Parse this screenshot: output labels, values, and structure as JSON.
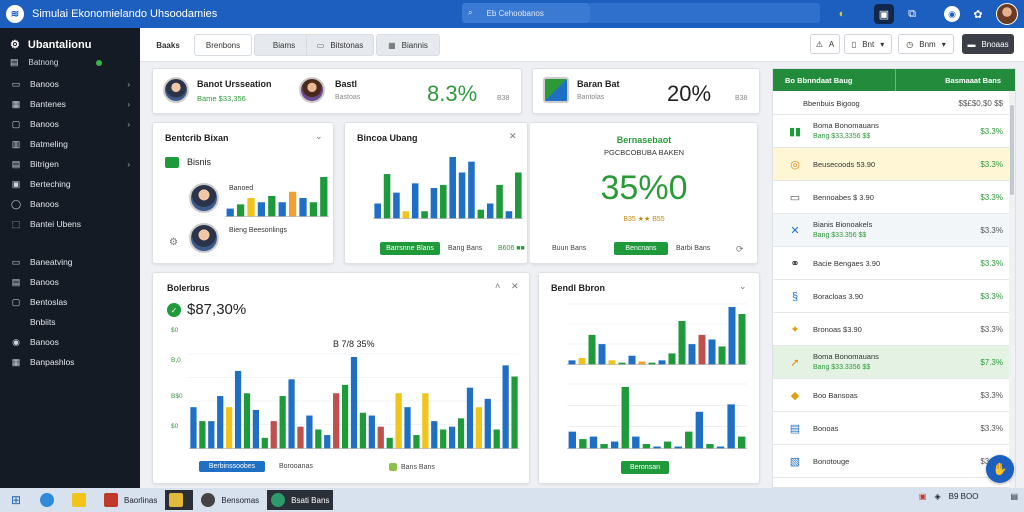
{
  "topbar": {
    "title": "Simulai Ekonomielando Uhsoodamies",
    "search_placeholder": "Eb Cehoobanos"
  },
  "sidebar": {
    "header": "Ubantalionu",
    "status": "Batnong",
    "items": [
      {
        "label": "Banoos",
        "chevron": true,
        "icon": "card-icon"
      },
      {
        "label": "Bantenes",
        "chevron": true,
        "icon": "grid-icon"
      },
      {
        "label": "Banoos",
        "chevron": true,
        "icon": "document-icon"
      },
      {
        "label": "Batmeling",
        "chevron": false,
        "icon": "chart-icon"
      },
      {
        "label": "Bitrigen",
        "chevron": true,
        "icon": "list-icon"
      },
      {
        "label": "Berteching",
        "chevron": false,
        "icon": "folder-icon"
      },
      {
        "label": "Banoos",
        "chevron": false,
        "icon": "settings-icon"
      },
      {
        "label": "Bantei Ubens",
        "chevron": false,
        "icon": "user-icon"
      }
    ],
    "items2": [
      {
        "label": "Baneatving",
        "icon": "calendar-icon"
      },
      {
        "label": "Banoos",
        "icon": "mail-icon"
      },
      {
        "label": "Bentoslas",
        "icon": "box-icon"
      },
      {
        "label": "Bnbiits",
        "icon": ""
      },
      {
        "label": "Banoos",
        "icon": "gear-icon"
      },
      {
        "label": "Banpashlos",
        "icon": "help-icon"
      }
    ]
  },
  "tabs": {
    "t1": "Baaks",
    "t2": "Brenbons",
    "t3": "Biams",
    "t4": "Bitstonas",
    "t5": "Biannis"
  },
  "controls": {
    "c1": "A",
    "c2": "Bnt",
    "c3": "Bnm",
    "c4": "Bnoaas"
  },
  "kpi": {
    "p1_name": "Banot Ursseation",
    "p1_sub": "Bame $33,356",
    "p2_name": "Bastl",
    "p2_sub": "Bastoas",
    "pct1": "8.3%",
    "pct1_side": "B38",
    "p3_name": "Baran Bat",
    "p3_sub": "Bantolas",
    "pct2": "20%",
    "pct2_side": "B38"
  },
  "card_a": {
    "title": "Bentcrib Bixan",
    "sub": "Bisnis",
    "person1": "Banoed",
    "person2": "Bieng Beesonlings"
  },
  "card_b": {
    "title": "Bincoa Ubang"
  },
  "card_c": {
    "title": "Bernasebaot",
    "subtitle": "PGCBCOBUBA BAKEN",
    "big": "35%0",
    "stars": "B35 ★★ B55",
    "legend": [
      "Barrsnne Blans",
      "Bang Bans",
      "B606 ■■",
      "Buun Bans"
    ],
    "btn": "Bencnans",
    "last": "Barbi Bans"
  },
  "card_d": {
    "title": "Bolerbrus",
    "big": "$87,30%",
    "inner": "B 7/8 35%",
    "legend": [
      "Berbinssoobes",
      "Borooanas",
      "Bans Bans"
    ]
  },
  "card_e": {
    "title": "Bendl Bbron",
    "legend_btn": "Beronsan"
  },
  "right": {
    "head_left": "Bo Bbnndaat Baug",
    "head_right": "Basmaaat Bans",
    "summary_label": "Bbenbuis Bigoog",
    "summary_val": "$$£$0,$0 $$",
    "rows": [
      {
        "name": "Boma Bonomauans",
        "sub": "Bang $33,3356 $$",
        "val": "$3.3%",
        "green": true,
        "icon": "bars-icon"
      },
      {
        "name": "Beusecoods 53.90",
        "sub": "",
        "val": "$3.3%",
        "green": true,
        "icon": "coin-icon",
        "highlight": "yellow"
      },
      {
        "name": "Bennoabes $ 3.90",
        "sub": "",
        "val": "$3.3%",
        "green": true,
        "icon": "box-icon"
      },
      {
        "name": "Bianis Bionoakels",
        "sub": "Bang $33.356 $$",
        "val": "$3.3%",
        "green": false,
        "icon": "x-icon"
      },
      {
        "name": "Bacie Bengaes 3.90",
        "sub": "",
        "val": "$3.3%",
        "green": true,
        "icon": "link-icon"
      },
      {
        "name": "Boracloas 3.90",
        "sub": "",
        "val": "$3.3%",
        "green": true,
        "icon": "s-icon"
      },
      {
        "name": "Bronoas $3.90",
        "sub": "",
        "val": "$3.3%",
        "green": false,
        "icon": "star-icon"
      },
      {
        "name": "Boma Bonomauans",
        "sub": "Bang $33.3356 $$",
        "val": "$7.3%",
        "green": true,
        "icon": "arrow-icon",
        "highlight": "green"
      },
      {
        "name": "Boo Bansoas",
        "sub": "",
        "val": "$3.3%",
        "green": false,
        "icon": "diamond-icon"
      },
      {
        "name": "Bonoas",
        "sub": "",
        "val": "$3.3%",
        "green": false,
        "icon": "doc-icon"
      },
      {
        "name": "Bonotouge",
        "sub": "",
        "val": "$3.3%",
        "green": false,
        "icon": "z-icon"
      }
    ]
  },
  "taskbar": {
    "apps": [
      "Baorlinas",
      "",
      "Bensomas",
      "Bsati Bans"
    ],
    "tray": "B9 BOO"
  },
  "chart_data": [
    {
      "type": "bar",
      "name": "card_a",
      "values": [
        8,
        12,
        18,
        14,
        20,
        14,
        24,
        18,
        14,
        38
      ],
      "colors": [
        "#1f6fc4",
        "#1f9a3b",
        "#f0c419",
        "#1f6fc4",
        "#1f9a3b",
        "#1f6fc4",
        "#f0a030",
        "#1f6fc4",
        "#1f9a3b",
        "#1f9a3b"
      ]
    },
    {
      "type": "bar",
      "name": "card_b",
      "values": [
        20,
        58,
        34,
        10,
        46,
        10,
        40,
        44,
        80,
        60,
        74,
        12,
        20,
        44,
        10,
        60
      ],
      "colors": [
        "#1f6fc4",
        "#1f9a3b",
        "#1f6fc4",
        "#f0c419",
        "#1f6fc4",
        "#1f9a3b",
        "#1f6fc4",
        "#1f9a3b",
        "#1f6fc4",
        "#1f6fc4",
        "#1f6fc4",
        "#1f9a3b",
        "#1f6fc4",
        "#1f9a3b",
        "#1f6fc4",
        "#1f9a3b"
      ]
    },
    {
      "type": "bar",
      "name": "card_d",
      "values": [
        30,
        20,
        20,
        38,
        30,
        56,
        40,
        28,
        8,
        20,
        38,
        50,
        16,
        24,
        14,
        10,
        40,
        46,
        66,
        26,
        24,
        16,
        8,
        40,
        30,
        10,
        40,
        20,
        14,
        16,
        22,
        44,
        30,
        36,
        14,
        60,
        52
      ],
      "colors": [
        "#1f6fc4",
        "#1f9a3b",
        "#1f6fc4",
        "#1f6fc4",
        "#f0c419",
        "#1f6fc4",
        "#1f9a3b",
        "#1f6fc4",
        "#1f9a3b",
        "#c0504d",
        "#1f9a3b",
        "#1f6fc4",
        "#c0504d",
        "#1f6fc4",
        "#1f9a3b",
        "#1f6fc4",
        "#c0504d",
        "#1f9a3b",
        "#1f6fc4",
        "#1f9a3b",
        "#1f6fc4",
        "#c0504d",
        "#1f9a3b",
        "#f0c419",
        "#1f6fc4",
        "#1f9a3b",
        "#f0c419",
        "#1f6fc4",
        "#1f9a3b",
        "#1f6fc4",
        "#1f9a3b",
        "#1f6fc4",
        "#f0c419",
        "#1f6fc4",
        "#1f9a3b",
        "#1f6fc4",
        "#1f9a3b"
      ]
    },
    {
      "type": "bar",
      "name": "card_e_top",
      "values": [
        4,
        6,
        26,
        18,
        4,
        2,
        8,
        3,
        2,
        4,
        10,
        38,
        18,
        26,
        22,
        16,
        50,
        44
      ],
      "colors": [
        "#1f6fc4",
        "#f0c419",
        "#1f9a3b",
        "#1f6fc4",
        "#f0c419",
        "#1f9a3b",
        "#1f6fc4",
        "#f0a030",
        "#1f9a3b",
        "#1f6fc4",
        "#1f9a3b",
        "#1f9a3b",
        "#1f6fc4",
        "#c0504d",
        "#1f6fc4",
        "#1f9a3b",
        "#1f6fc4",
        "#1f9a3b"
      ]
    },
    {
      "type": "bar",
      "name": "card_e_bottom",
      "values": [
        14,
        8,
        10,
        4,
        6,
        50,
        10,
        4,
        2,
        6,
        2,
        14,
        30,
        4,
        2,
        36,
        10
      ],
      "colors": [
        "#1f6fc4",
        "#1f9a3b",
        "#1f6fc4",
        "#1f9a3b",
        "#1f6fc4",
        "#1f9a3b",
        "#1f6fc4",
        "#1f9a3b",
        "#1f6fc4",
        "#1f9a3b",
        "#1f6fc4",
        "#1f9a3b",
        "#1f6fc4",
        "#1f9a3b",
        "#1f6fc4",
        "#1f6fc4",
        "#1f9a3b"
      ]
    }
  ]
}
